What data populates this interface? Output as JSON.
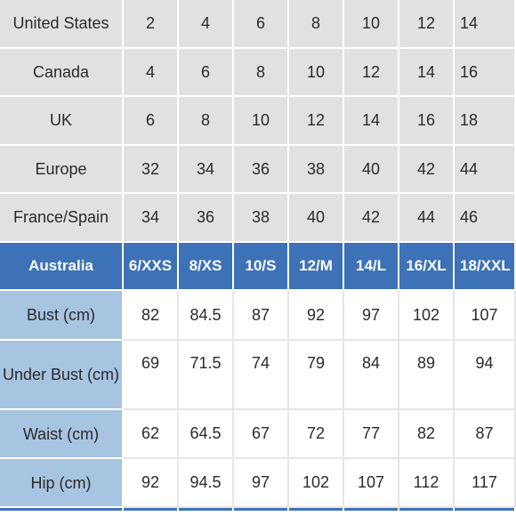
{
  "table": {
    "conversion_rows": [
      {
        "label": "United States",
        "values": [
          "2",
          "4",
          "6",
          "8",
          "10",
          "12",
          "14"
        ]
      },
      {
        "label": "Canada",
        "values": [
          "4",
          "6",
          "8",
          "10",
          "12",
          "14",
          "16"
        ]
      },
      {
        "label": "UK",
        "values": [
          "6",
          "8",
          "10",
          "12",
          "14",
          "16",
          "18"
        ]
      },
      {
        "label": "Europe",
        "values": [
          "32",
          "34",
          "36",
          "38",
          "40",
          "42",
          "44"
        ]
      },
      {
        "label": "France/Spain",
        "values": [
          "34",
          "36",
          "38",
          "40",
          "42",
          "44",
          "46"
        ]
      }
    ],
    "header_row": {
      "label": "Australia",
      "values": [
        "6/XXS",
        "8/XS",
        "10/S",
        "12/M",
        "14/L",
        "16/XL",
        "18/XXL"
      ]
    },
    "measurement_rows": [
      {
        "label": "Bust (cm)",
        "values": [
          "82",
          "84.5",
          "87",
          "92",
          "97",
          "102",
          "107"
        ]
      },
      {
        "label": "Under Bust (cm)",
        "values": [
          "69",
          "71.5",
          "74",
          "79",
          "84",
          "89",
          "94"
        ]
      },
      {
        "label": "Waist (cm)",
        "values": [
          "62",
          "64.5",
          "67",
          "72",
          "77",
          "82",
          "87"
        ]
      },
      {
        "label": "Hip (cm)",
        "values": [
          "92",
          "94.5",
          "97",
          "102",
          "107",
          "112",
          "117"
        ]
      }
    ]
  },
  "colors": {
    "header_blue": "#3d72b7",
    "label_light_blue": "#a7c4e1",
    "conversion_grey": "#e1e1e1"
  }
}
